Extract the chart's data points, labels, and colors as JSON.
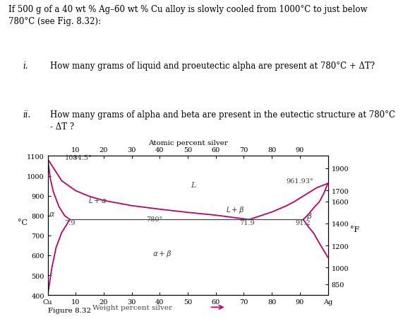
{
  "title_text": "If 500 g of a 40 wt % Ag–60 wt % Cu alloy is slowly cooled from 1000°C to just below\n780°C (see Fig. 8.32):",
  "item_i_num": "i.",
  "item_i_text": "How many grams of liquid and proeutectic alpha are present at 780°C + ΔT?",
  "item_ii_num": "ii.",
  "item_ii_text": "How many grams of alpha and beta are present in the eutectic structure at 780°C\n- ΔT ?",
  "fig_label": "Figure 8.32",
  "atomic_percent_label": "Atomic percent silver",
  "atomic_ticks": [
    10,
    20,
    30,
    40,
    50,
    60,
    70,
    80,
    90
  ],
  "weight_percent_label": "Weight percent silver",
  "left_ylabel": "°C",
  "right_ylabel": "°F",
  "xlim": [
    0,
    100
  ],
  "ylim_C": [
    400,
    1100
  ],
  "ylim_F_ticks": [
    850,
    1000,
    1200,
    1400,
    1600,
    1700,
    1900
  ],
  "ylim_F_tick_labels": [
    "850",
    "1000",
    "1200",
    "1400",
    "1600",
    "1700",
    "1900"
  ],
  "left_yticks": [
    400,
    500,
    600,
    700,
    800,
    900,
    1000,
    1100
  ],
  "left_ytick_labels": [
    "400",
    "500",
    "600",
    "700",
    "800",
    "900",
    "1000",
    "1100"
  ],
  "xticks": [
    0,
    10,
    20,
    30,
    40,
    50,
    60,
    70,
    80,
    90,
    100
  ],
  "xtick_labels": [
    "Cu",
    "10",
    "20",
    "30",
    "40",
    "50",
    "60",
    "70",
    "80",
    "90",
    "Ag"
  ],
  "curve_color": "#c0006a",
  "line_color": "#444444",
  "eutectic_temp": 780,
  "eutectic_comp": 71.9,
  "alpha_solvus_eutectic": 7.9,
  "beta_solvus_eutectic": 91.2,
  "Cu_melt": 1084.5,
  "Ag_melt": 961.93,
  "liq_left_x": [
    0,
    5,
    10,
    15,
    20,
    30,
    40,
    50,
    60,
    71.9
  ],
  "liq_left_y": [
    1084.5,
    975,
    925,
    896,
    876,
    850,
    832,
    816,
    802,
    780
  ],
  "liq_right_x": [
    71.9,
    80,
    85,
    88,
    92,
    96,
    100
  ],
  "liq_right_y": [
    780,
    818,
    848,
    870,
    905,
    940,
    961.93
  ],
  "sol_left_x": [
    0,
    1,
    2,
    4,
    6,
    7.9
  ],
  "sol_left_y": [
    1084.5,
    980,
    920,
    845,
    800,
    780
  ],
  "alpha_solvus_x": [
    7.9,
    5,
    3,
    1.5,
    0
  ],
  "alpha_solvus_y": [
    780,
    715,
    640,
    540,
    400
  ],
  "beta_solvus_x": [
    91.2,
    93,
    95,
    97,
    100
  ],
  "beta_solvus_y": [
    780,
    745,
    710,
    660,
    590
  ],
  "sol_right_x": [
    100,
    98.5,
    97,
    95,
    93,
    91.2
  ],
  "sol_right_y": [
    961.93,
    910,
    870,
    840,
    805,
    780
  ],
  "label_L": [
    52,
    945
  ],
  "label_La": [
    18,
    868
  ],
  "label_Lb": [
    67,
    822
  ],
  "label_alpha": [
    1.5,
    800
  ],
  "label_beta": [
    93.5,
    790
  ],
  "label_780": [
    38,
    774
  ],
  "label_7p9": [
    7.9,
    757
  ],
  "label_71p9": [
    71.2,
    757
  ],
  "label_91p2": [
    91.0,
    757
  ],
  "label_1084": [
    6,
    1083
  ],
  "label_96193": [
    85,
    967
  ],
  "label_aplusb": [
    41,
    598
  ],
  "background_color": "#ffffff"
}
